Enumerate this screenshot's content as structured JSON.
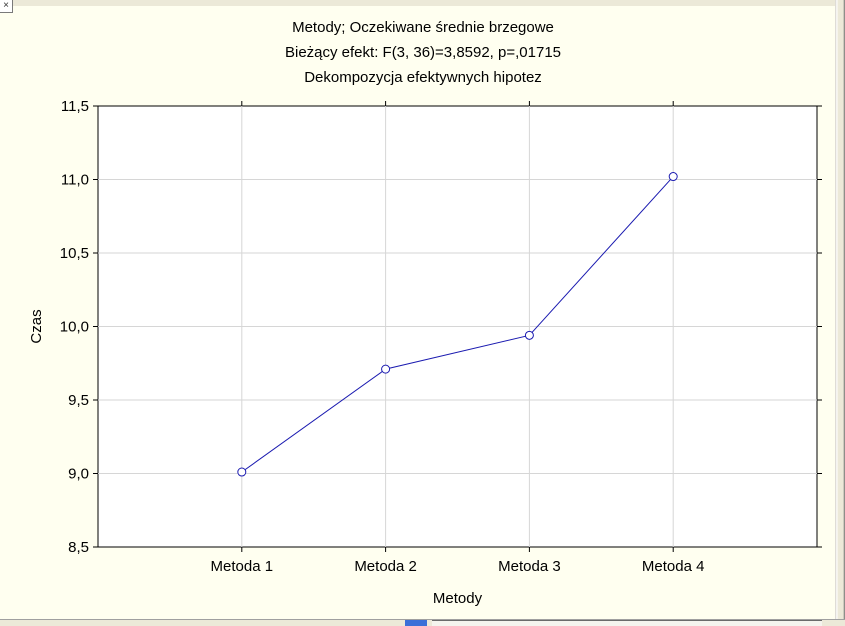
{
  "chart_data": {
    "type": "line",
    "title_lines": [
      "Metody; Oczekiwane średnie brzegowe",
      "Bieżący efekt: F(3, 36)=3,8592, p=,01715",
      "Dekompozycja efektywnych hipotez"
    ],
    "xlabel": "Metody",
    "ylabel": "Czas",
    "categories": [
      "Metoda 1",
      "Metoda 2",
      "Metoda 3",
      "Metoda 4"
    ],
    "series": [
      {
        "name": "Czas",
        "values": [
          9.01,
          9.71,
          9.94,
          11.02
        ]
      }
    ],
    "ylim": [
      8.5,
      11.5
    ],
    "yticks": [
      8.5,
      9.0,
      9.5,
      10.0,
      10.5,
      11.0,
      11.5
    ],
    "ytick_labels": [
      "8,5",
      "9,0",
      "9,5",
      "10,0",
      "10,5",
      "11,0",
      "11,5"
    ],
    "grid": true,
    "colors": {
      "line": "#1a1ab0",
      "grid": "#d6d6d6",
      "background": "#fffff0",
      "plot_background": "#ffffff"
    }
  }
}
